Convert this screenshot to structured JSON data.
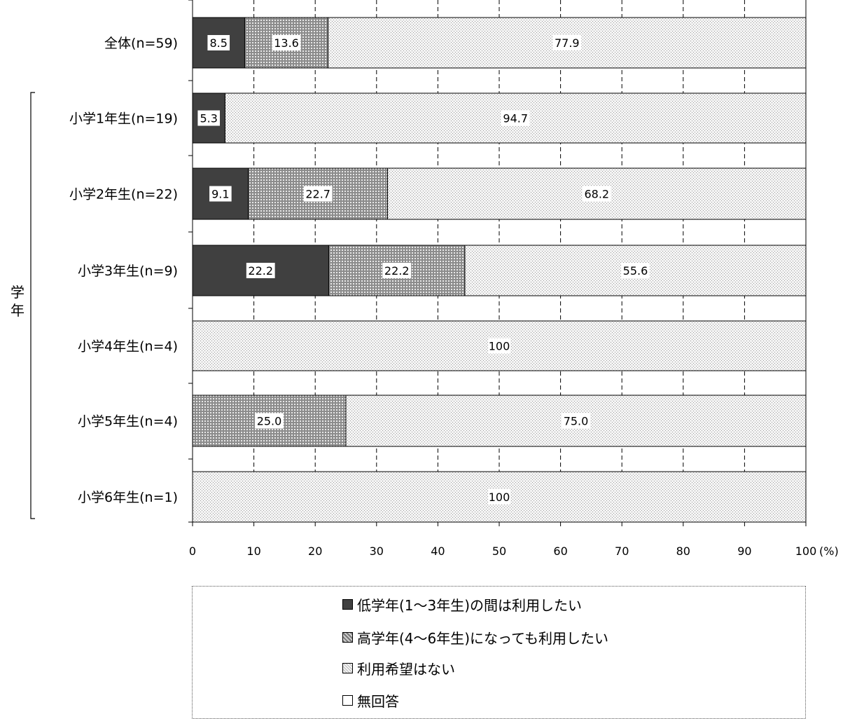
{
  "chart_data": {
    "type": "bar",
    "orientation": "horizontal",
    "stacked": true,
    "categories": [
      "全体(n=59)",
      "小学1年生(n=19)",
      "小学2年生(n=22)",
      "小学3年生(n=9)",
      "小学4年生(n=4)",
      "小学5年生(n=4)",
      "小学6年生(n=1)"
    ],
    "series": [
      {
        "name": "低学年(1～3年生)の間は利用したい",
        "pattern": "solid-dark",
        "color": "#404040",
        "values": [
          8.5,
          5.3,
          9.1,
          22.2,
          0,
          0,
          0
        ]
      },
      {
        "name": "高学年(4～6年生)になっても利用したい",
        "pattern": "dense-dots",
        "color": "#9a9a9a",
        "values": [
          13.6,
          0,
          22.7,
          22.2,
          0,
          25.0,
          0
        ]
      },
      {
        "name": "利用希望はない",
        "pattern": "light-dots",
        "color": "#d9d9d9",
        "values": [
          77.9,
          94.7,
          68.2,
          55.6,
          100,
          75.0,
          100
        ]
      },
      {
        "name": "無回答",
        "pattern": "white",
        "color": "#ffffff",
        "values": [
          0,
          0,
          0,
          0,
          0,
          0,
          0
        ]
      }
    ],
    "value_labels": [
      [
        "8.5",
        "13.6",
        "77.9"
      ],
      [
        "5.3",
        "94.7"
      ],
      [
        "9.1",
        "22.7",
        "68.2"
      ],
      [
        "22.2",
        "22.2",
        "55.6"
      ],
      [
        "100"
      ],
      [
        "25.0",
        "75.0"
      ],
      [
        "100"
      ]
    ],
    "x_ticks": [
      "0",
      "10",
      "20",
      "30",
      "40",
      "50",
      "60",
      "70",
      "80",
      "90",
      "100"
    ],
    "x_unit": "(%)",
    "xlim": [
      0,
      100
    ],
    "grid": "vertical-dashed",
    "group_label": "学年",
    "legend_placement": "bottom"
  }
}
